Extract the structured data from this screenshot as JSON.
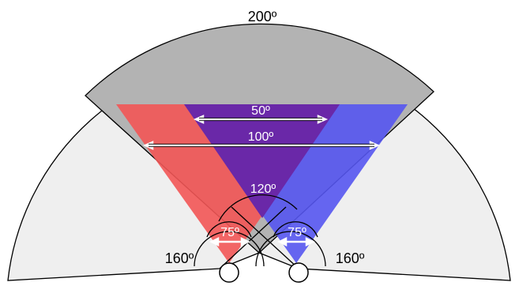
{
  "labels": {
    "total_fov": "200º",
    "left_total": "160º",
    "right_total": "160º",
    "binocular_overlap": "120º",
    "wide_span": "100º",
    "narrow_span": "50º",
    "left_focus": "75º",
    "right_focus": "75º"
  },
  "colors": {
    "peripheral": "#efefef",
    "top_overlap": "#b3b3b3",
    "left_eye_field": "#f25555",
    "right_eye_field": "#5555f0",
    "overlap_field": "#6a28a8",
    "arrow": "#ffffff",
    "outline": "#000000"
  }
}
